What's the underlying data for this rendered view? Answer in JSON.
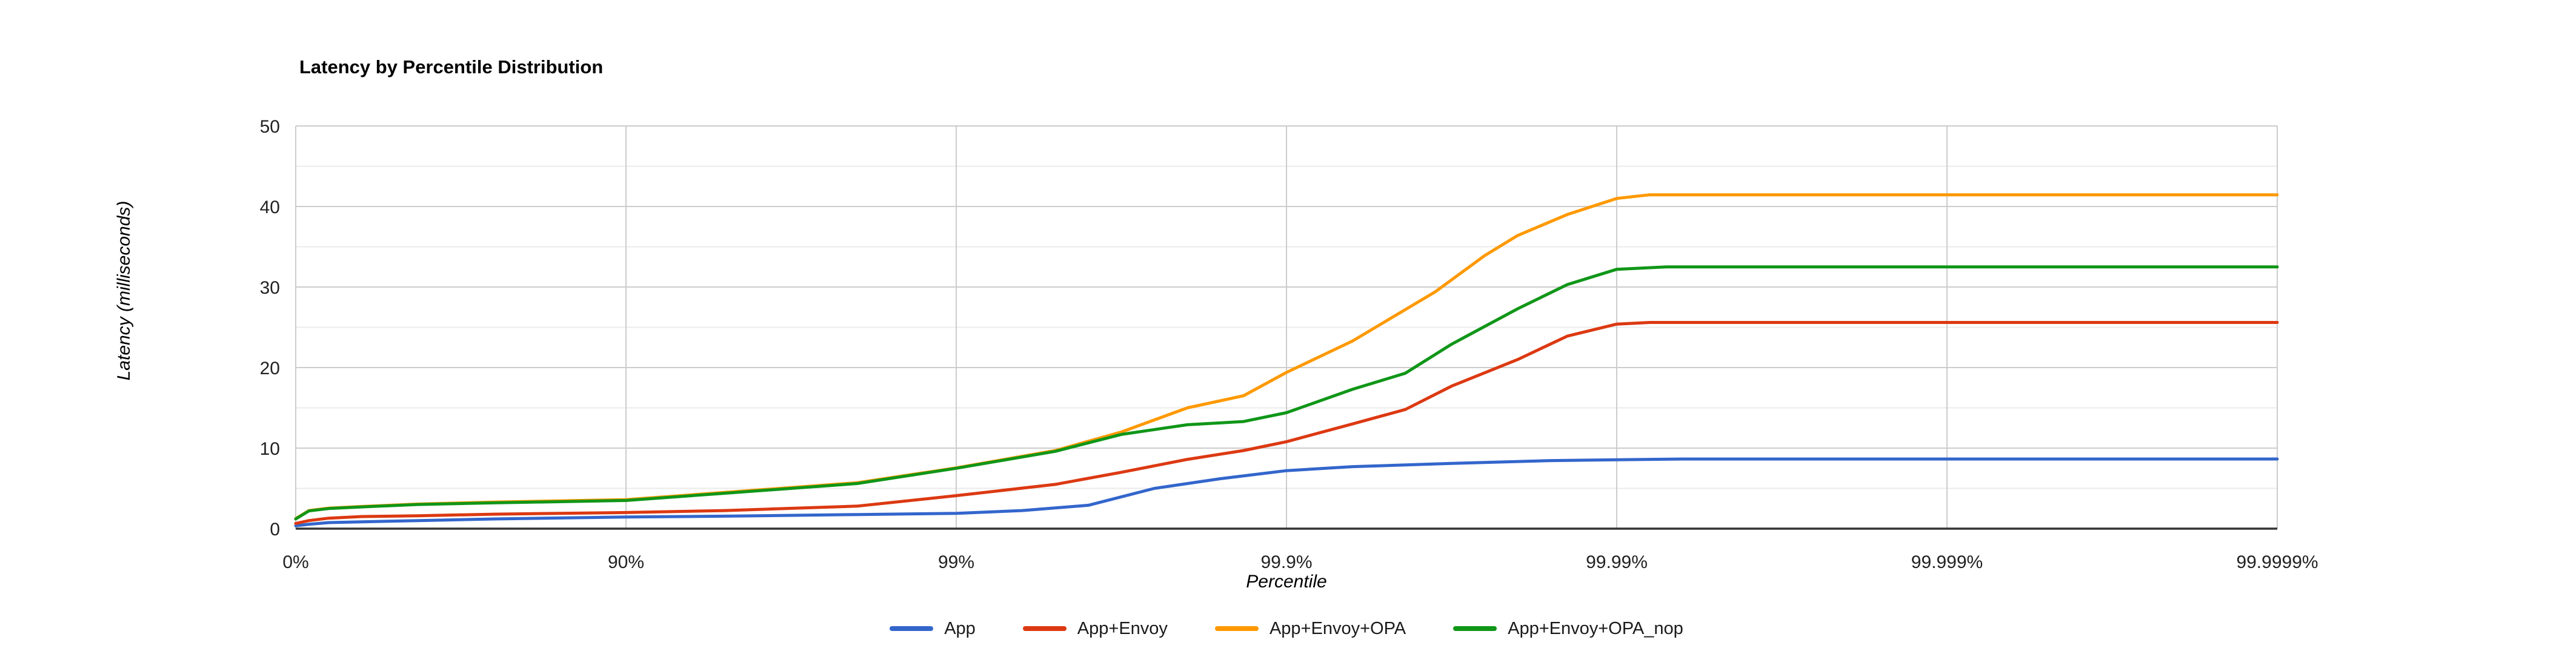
{
  "page": {
    "background_color": "#ffffff"
  },
  "chart_data": {
    "type": "line",
    "title": "Latency by Percentile Distribution",
    "xlabel": "Percentile",
    "ylabel": "Latency (milliseconds)",
    "x_scale": "logarithmic-percentile (u = log10(1/(1-p)), 0%..99.9999%)",
    "x_ticks": [
      {
        "label": "0%",
        "nines": 0
      },
      {
        "label": "90%",
        "nines": 1
      },
      {
        "label": "99%",
        "nines": 2
      },
      {
        "label": "99.9%",
        "nines": 3
      },
      {
        "label": "99.99%",
        "nines": 4
      },
      {
        "label": "99.999%",
        "nines": 5
      },
      {
        "label": "99.9999%",
        "nines": 6
      }
    ],
    "y_ticks": [
      {
        "label": "0",
        "value": 0
      },
      {
        "label": "10",
        "value": 10
      },
      {
        "label": "20",
        "value": 20
      },
      {
        "label": "30",
        "value": 30
      },
      {
        "label": "40",
        "value": 40
      },
      {
        "label": "50",
        "value": 50
      }
    ],
    "ylim": [
      0,
      50
    ],
    "y_minor_step": 5,
    "grid": {
      "major_color": "#cccccc",
      "minor_color": "#ebebeb",
      "baseline_color": "#333333",
      "vertical_gridlines_at_ticks": true
    },
    "legend_position": "bottom",
    "text_colors": {
      "title": "#000000",
      "tick_labels": "#222222",
      "axis_titles": "#000000"
    },
    "series": [
      {
        "name": "App",
        "color": "#3366CC",
        "plateau_ms": 8.65,
        "points": [
          [
            0,
            0.35
          ],
          [
            0.04,
            0.55
          ],
          [
            0.1,
            0.75
          ],
          [
            0.2,
            0.85
          ],
          [
            0.37,
            1.0
          ],
          [
            0.6,
            1.2
          ],
          [
            1.0,
            1.45
          ],
          [
            1.3,
            1.55
          ],
          [
            1.7,
            1.75
          ],
          [
            2.0,
            1.9
          ],
          [
            2.2,
            2.25
          ],
          [
            2.4,
            2.9
          ],
          [
            2.6,
            5.0
          ],
          [
            2.8,
            6.2
          ],
          [
            3.0,
            7.2
          ],
          [
            3.2,
            7.7
          ],
          [
            3.5,
            8.1
          ],
          [
            3.8,
            8.45
          ],
          [
            4.0,
            8.55
          ],
          [
            4.2,
            8.65
          ],
          [
            4.5,
            8.65
          ],
          [
            5.0,
            8.65
          ],
          [
            6.0,
            8.65
          ]
        ]
      },
      {
        "name": "App+Envoy",
        "color": "#DC3912",
        "plateau_ms": 25.6,
        "points": [
          [
            0,
            0.65
          ],
          [
            0.04,
            1.0
          ],
          [
            0.1,
            1.3
          ],
          [
            0.2,
            1.5
          ],
          [
            0.37,
            1.6
          ],
          [
            0.6,
            1.8
          ],
          [
            1.0,
            2.0
          ],
          [
            1.3,
            2.25
          ],
          [
            1.7,
            2.8
          ],
          [
            2.0,
            4.1
          ],
          [
            2.3,
            5.5
          ],
          [
            2.5,
            7.0
          ],
          [
            2.7,
            8.6
          ],
          [
            2.87,
            9.7
          ],
          [
            3.0,
            10.8
          ],
          [
            3.2,
            13.0
          ],
          [
            3.36,
            14.8
          ],
          [
            3.5,
            17.7
          ],
          [
            3.7,
            21.0
          ],
          [
            3.85,
            23.9
          ],
          [
            4.0,
            25.4
          ],
          [
            4.1,
            25.6
          ],
          [
            4.3,
            25.6
          ],
          [
            5.0,
            25.6
          ],
          [
            6.0,
            25.6
          ]
        ]
      },
      {
        "name": "App+Envoy+OPA",
        "color": "#FF9900",
        "plateau_ms": 41.45,
        "points": [
          [
            0,
            1.25
          ],
          [
            0.04,
            2.25
          ],
          [
            0.1,
            2.55
          ],
          [
            0.2,
            2.75
          ],
          [
            0.37,
            3.05
          ],
          [
            0.6,
            3.3
          ],
          [
            1.0,
            3.6
          ],
          [
            1.3,
            4.5
          ],
          [
            1.7,
            5.7
          ],
          [
            2.0,
            7.55
          ],
          [
            2.3,
            9.7
          ],
          [
            2.5,
            12.0
          ],
          [
            2.7,
            15.0
          ],
          [
            2.87,
            16.5
          ],
          [
            3.0,
            19.4
          ],
          [
            3.2,
            23.3
          ],
          [
            3.45,
            29.4
          ],
          [
            3.6,
            33.9
          ],
          [
            3.7,
            36.4
          ],
          [
            3.85,
            39.0
          ],
          [
            4.0,
            41.0
          ],
          [
            4.1,
            41.45
          ],
          [
            4.3,
            41.45
          ],
          [
            5.0,
            41.45
          ],
          [
            6.0,
            41.45
          ]
        ]
      },
      {
        "name": "App+Envoy+OPA_nop",
        "color": "#109618",
        "plateau_ms": 32.5,
        "points": [
          [
            0,
            1.2
          ],
          [
            0.04,
            2.2
          ],
          [
            0.1,
            2.5
          ],
          [
            0.2,
            2.7
          ],
          [
            0.37,
            3.0
          ],
          [
            0.6,
            3.2
          ],
          [
            1.0,
            3.5
          ],
          [
            1.3,
            4.4
          ],
          [
            1.7,
            5.6
          ],
          [
            2.0,
            7.5
          ],
          [
            2.3,
            9.6
          ],
          [
            2.5,
            11.7
          ],
          [
            2.7,
            12.9
          ],
          [
            2.87,
            13.3
          ],
          [
            3.0,
            14.4
          ],
          [
            3.2,
            17.3
          ],
          [
            3.36,
            19.3
          ],
          [
            3.5,
            22.9
          ],
          [
            3.7,
            27.3
          ],
          [
            3.85,
            30.3
          ],
          [
            4.0,
            32.2
          ],
          [
            4.15,
            32.5
          ],
          [
            4.3,
            32.5
          ],
          [
            5.0,
            32.5
          ],
          [
            6.0,
            32.5
          ]
        ]
      }
    ]
  }
}
